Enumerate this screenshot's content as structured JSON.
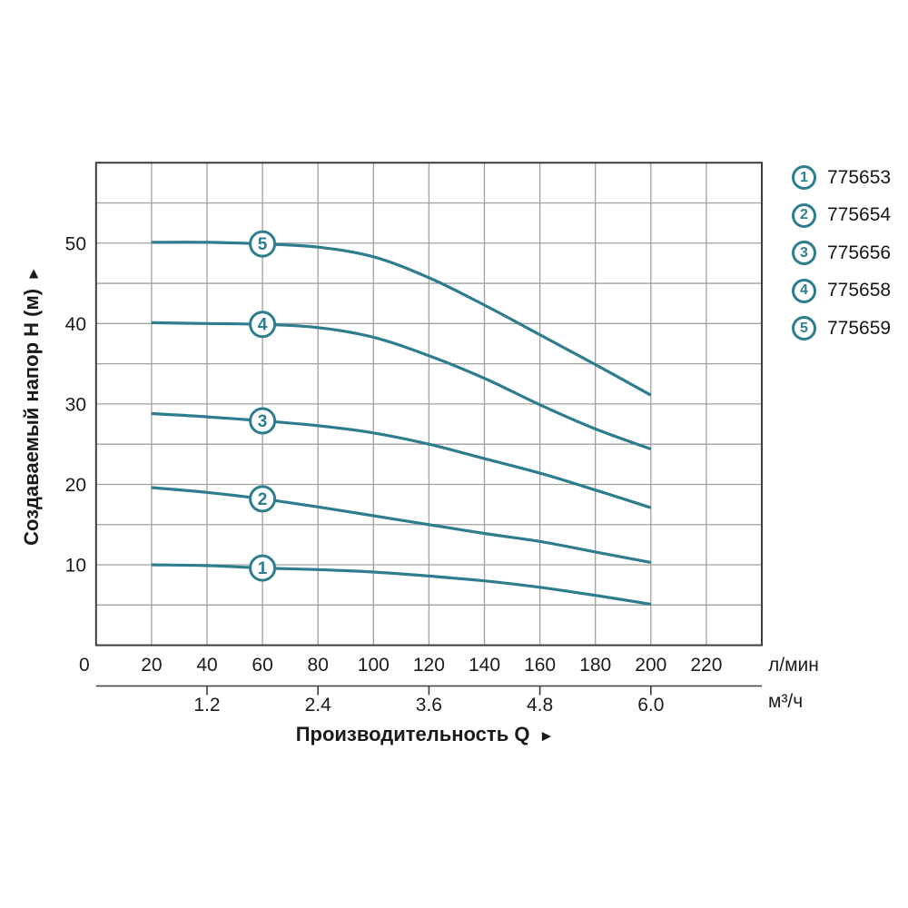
{
  "axes": {
    "y_title": "Создаваемый напор H (м)",
    "y_title_arrow": "►",
    "x_title": "Производительность Q",
    "x_title_arrow": "►"
  },
  "legend": {
    "items": [
      {
        "num": "1",
        "label": "775653"
      },
      {
        "num": "2",
        "label": "775654"
      },
      {
        "num": "3",
        "label": "775656"
      },
      {
        "num": "4",
        "label": "775658"
      },
      {
        "num": "5",
        "label": "775659"
      }
    ]
  },
  "chart_data": {
    "type": "line",
    "title": "",
    "xlabel": "Производительность Q",
    "ylabel": "Создаваемый напор H (м)",
    "x_unit_primary": "л/мин",
    "x_unit_secondary": "м³/ч",
    "xlim": [
      0,
      240
    ],
    "ylim": [
      0,
      60
    ],
    "grid": true,
    "x_grid_step": 20,
    "y_grid_step": 5,
    "x_ticks": [
      0,
      20,
      40,
      60,
      80,
      100,
      120,
      140,
      160,
      180,
      200,
      220
    ],
    "y_ticks": [
      10,
      20,
      30,
      40,
      50
    ],
    "x2_ticks": [
      {
        "label": "1.2",
        "at": 40
      },
      {
        "label": "2.4",
        "at": 80
      },
      {
        "label": "3.6",
        "at": 120
      },
      {
        "label": "4.8",
        "at": 160
      },
      {
        "label": "6.0",
        "at": 200
      }
    ],
    "marker_x": 60,
    "legend_position": "top-right",
    "series": [
      {
        "curve_number": "1",
        "name": "775653",
        "points": [
          [
            20,
            10.0
          ],
          [
            40,
            9.9
          ],
          [
            60,
            9.6
          ],
          [
            80,
            9.4
          ],
          [
            100,
            9.1
          ],
          [
            120,
            8.6
          ],
          [
            140,
            8.0
          ],
          [
            160,
            7.2
          ],
          [
            180,
            6.2
          ],
          [
            200,
            5.1
          ]
        ]
      },
      {
        "curve_number": "2",
        "name": "775654",
        "points": [
          [
            20,
            19.6
          ],
          [
            40,
            19.0
          ],
          [
            60,
            18.2
          ],
          [
            80,
            17.2
          ],
          [
            100,
            16.1
          ],
          [
            120,
            15.0
          ],
          [
            140,
            13.9
          ],
          [
            160,
            12.9
          ],
          [
            180,
            11.6
          ],
          [
            200,
            10.3
          ]
        ]
      },
      {
        "curve_number": "3",
        "name": "775656",
        "points": [
          [
            20,
            28.8
          ],
          [
            40,
            28.4
          ],
          [
            60,
            27.9
          ],
          [
            80,
            27.3
          ],
          [
            100,
            26.4
          ],
          [
            120,
            25.0
          ],
          [
            140,
            23.2
          ],
          [
            160,
            21.4
          ],
          [
            180,
            19.3
          ],
          [
            200,
            17.1
          ]
        ]
      },
      {
        "curve_number": "4",
        "name": "775658",
        "points": [
          [
            20,
            40.1
          ],
          [
            40,
            40.0
          ],
          [
            60,
            39.9
          ],
          [
            80,
            39.5
          ],
          [
            100,
            38.3
          ],
          [
            120,
            36.0
          ],
          [
            140,
            33.2
          ],
          [
            160,
            29.9
          ],
          [
            180,
            26.9
          ],
          [
            200,
            24.4
          ]
        ]
      },
      {
        "curve_number": "5",
        "name": "775659",
        "points": [
          [
            20,
            50.1
          ],
          [
            40,
            50.1
          ],
          [
            60,
            49.9
          ],
          [
            80,
            49.5
          ],
          [
            100,
            48.3
          ],
          [
            120,
            45.7
          ],
          [
            140,
            42.3
          ],
          [
            160,
            38.6
          ],
          [
            180,
            34.9
          ],
          [
            200,
            31.1
          ]
        ]
      }
    ],
    "style": {
      "curve_color": "#2e7d8f",
      "grid_color": "#a0a0a0",
      "border_color": "#3d3d3d",
      "text_color": "#1c1c1c",
      "marker_fill": "#ffffff"
    }
  }
}
